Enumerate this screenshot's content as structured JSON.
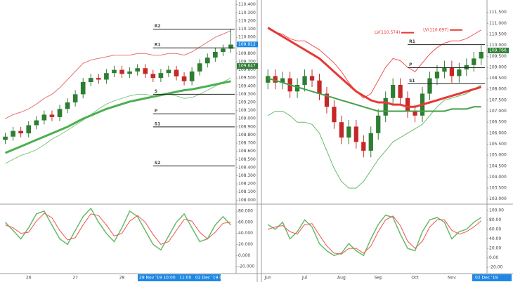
{
  "chart_data": [
    {
      "type": "candlestick",
      "categories": [
        null,
        null,
        null,
        "26",
        null,
        null,
        null,
        null,
        null,
        "27",
        null,
        null,
        null,
        null,
        null,
        "28",
        null,
        null,
        null,
        null,
        null,
        "29",
        null,
        null,
        null,
        null,
        null,
        null,
        null,
        null
      ],
      "open": [
        108.74,
        108.78,
        108.85,
        108.82,
        108.92,
        108.98,
        109.05,
        109.02,
        109.12,
        109.2,
        109.3,
        109.45,
        109.5,
        109.48,
        109.56,
        109.6,
        109.55,
        109.58,
        109.62,
        109.55,
        109.5,
        109.56,
        109.6,
        109.52,
        109.46,
        109.58,
        109.68,
        109.75,
        109.82,
        109.86
      ],
      "high": [
        108.83,
        108.9,
        108.9,
        108.97,
        109.03,
        109.1,
        109.1,
        109.17,
        109.25,
        109.35,
        109.5,
        109.55,
        109.55,
        109.61,
        109.65,
        109.65,
        109.63,
        109.67,
        109.67,
        109.6,
        109.61,
        109.65,
        109.65,
        109.57,
        109.63,
        109.73,
        109.8,
        109.87,
        109.91,
        110.1
      ],
      "low": [
        108.69,
        108.73,
        108.77,
        108.77,
        108.87,
        108.93,
        108.97,
        108.97,
        109.07,
        109.15,
        109.25,
        109.4,
        109.43,
        109.43,
        109.51,
        109.5,
        109.5,
        109.53,
        109.5,
        109.45,
        109.45,
        109.51,
        109.47,
        109.41,
        109.41,
        109.53,
        109.63,
        109.7,
        109.77,
        109.81
      ],
      "close": [
        108.78,
        108.85,
        108.82,
        108.92,
        108.98,
        109.05,
        109.02,
        109.12,
        109.2,
        109.3,
        109.45,
        109.5,
        109.48,
        109.56,
        109.6,
        109.55,
        109.58,
        109.62,
        109.55,
        109.5,
        109.56,
        109.6,
        109.52,
        109.46,
        109.58,
        109.68,
        109.75,
        109.82,
        109.86,
        109.91
      ],
      "up_color": "#2e7d32",
      "down_color": "#c62828",
      "series": [
        {
          "color": "#e57373",
          "width": 1,
          "values": [
            109.0,
            109.05,
            109.08,
            109.12,
            109.18,
            109.25,
            109.3,
            109.38,
            109.48,
            109.58,
            109.68,
            109.72,
            109.74,
            109.76,
            109.78,
            109.78,
            109.78,
            109.8,
            109.8,
            109.78,
            109.78,
            109.8,
            109.8,
            109.78,
            109.82,
            109.88,
            109.94,
            110.0,
            110.04,
            110.08
          ]
        },
        {
          "color": "#81c784",
          "width": 1,
          "values": [
            108.45,
            108.5,
            108.55,
            108.58,
            108.62,
            108.68,
            108.75,
            108.8,
            108.86,
            108.92,
            108.98,
            109.05,
            109.12,
            109.18,
            109.22,
            109.25,
            109.28,
            109.3,
            109.3,
            109.28,
            109.28,
            109.3,
            109.28,
            109.25,
            109.26,
            109.3,
            109.35,
            109.4,
            109.45,
            109.5
          ]
        },
        {
          "color": "#4caf50",
          "width": 3,
          "values": [
            108.58,
            108.62,
            108.66,
            108.7,
            108.74,
            108.78,
            108.82,
            108.86,
            108.9,
            108.95,
            109.0,
            109.04,
            109.08,
            109.12,
            109.15,
            109.18,
            109.21,
            109.23,
            109.25,
            109.27,
            109.29,
            109.31,
            109.33,
            109.35,
            109.36,
            109.38,
            109.4,
            109.42,
            109.44,
            109.46
          ]
        }
      ],
      "levels": [
        {
          "label": "R2",
          "value": 110.1
        },
        {
          "label": "R1",
          "value": 109.87
        },
        {
          "label": "S",
          "value": 109.3
        },
        {
          "label": "P",
          "value": 109.06
        },
        {
          "label": "S1",
          "value": 108.9
        },
        {
          "label": "S2",
          "value": 108.42
        }
      ],
      "price_labels": [
        {
          "value": 109.912,
          "label": "109.912",
          "color": "#1e88e5"
        },
        {
          "value": 109.647,
          "label": "109.647",
          "color": "#2e7d32"
        }
      ],
      "ylim": [
        107.96,
        110.44
      ],
      "yticks": [
        {
          "value": 110.4,
          "label": "110.400"
        },
        {
          "value": 110.3,
          "label": "110.300"
        },
        {
          "value": 110.2,
          "label": "110.200"
        },
        {
          "value": 110.1,
          "label": "110.100"
        },
        {
          "value": 110.0,
          "label": "110.000"
        },
        {
          "value": 109.9,
          "label": "109.900"
        },
        {
          "value": 109.8,
          "label": "109.800"
        },
        {
          "value": 109.7,
          "label": "109.700"
        },
        {
          "value": 109.6,
          "label": "109.600"
        },
        {
          "value": 109.5,
          "label": "109.500"
        },
        {
          "value": 109.4,
          "label": "109.400"
        },
        {
          "value": 109.3,
          "label": "109.300"
        },
        {
          "value": 109.2,
          "label": "109.200"
        },
        {
          "value": 109.1,
          "label": "109.100"
        },
        {
          "value": 109.0,
          "label": "109.000"
        },
        {
          "value": 108.9,
          "label": "108.900"
        },
        {
          "value": 108.8,
          "label": "108.800"
        },
        {
          "value": 108.7,
          "label": "108.700"
        },
        {
          "value": 108.6,
          "label": "108.600"
        },
        {
          "value": 108.5,
          "label": "108.500"
        },
        {
          "value": 108.4,
          "label": "108.400"
        },
        {
          "value": 108.3,
          "label": "108.300"
        },
        {
          "value": 108.2,
          "label": "108.200"
        },
        {
          "value": 108.1,
          "label": "108.100"
        },
        {
          "value": 108.0,
          "label": "108.000"
        }
      ]
    },
    {
      "type": "line",
      "categories": [
        null,
        null,
        null,
        null,
        null,
        null,
        null,
        null,
        null,
        null,
        null,
        null,
        null,
        null,
        null,
        null,
        null,
        null,
        null,
        null,
        null,
        null,
        null,
        null,
        null,
        null,
        null,
        null,
        null,
        null
      ],
      "series": [
        {
          "color": "#66bb6a",
          "width": 1.5,
          "values": [
            60,
            45,
            30,
            50,
            75,
            80,
            55,
            30,
            20,
            45,
            70,
            85,
            60,
            40,
            25,
            50,
            80,
            70,
            45,
            20,
            10,
            35,
            60,
            75,
            50,
            25,
            30,
            55,
            70,
            55
          ]
        },
        {
          "color": "#ef5350",
          "width": 1,
          "values": [
            55,
            50,
            40,
            42,
            62,
            76,
            68,
            45,
            28,
            32,
            55,
            75,
            72,
            55,
            35,
            40,
            62,
            72,
            60,
            38,
            20,
            25,
            45,
            65,
            62,
            42,
            30,
            42,
            58,
            60
          ]
        }
      ],
      "x_highlight_labels": [
        "29 Nov '19 10:00",
        "11:00",
        "02 Dec '19 05:00"
      ],
      "ylim": [
        -30,
        90
      ],
      "yticks": [
        {
          "value": 80,
          "label": "80.000"
        },
        {
          "value": 60,
          "label": "60.000"
        },
        {
          "value": 40,
          "label": "40.000"
        },
        {
          "value": 20,
          "label": "20.000"
        },
        {
          "value": 0,
          "label": "0.000"
        },
        {
          "value": -20,
          "label": "-20.000"
        }
      ]
    },
    {
      "type": "candlestick",
      "categories": [
        "Jun",
        null,
        null,
        null,
        null,
        "Jul",
        null,
        null,
        null,
        null,
        "Aug",
        null,
        null,
        null,
        null,
        "Sep",
        null,
        null,
        null,
        null,
        "Oct",
        null,
        null,
        null,
        null,
        "Nov",
        null,
        null,
        null,
        null
      ],
      "open": [
        108.3,
        108.6,
        108.3,
        108.5,
        107.9,
        108.2,
        108.6,
        108.4,
        107.8,
        107.2,
        106.5,
        105.8,
        106.3,
        105.6,
        105.2,
        106.0,
        106.8,
        107.6,
        108.2,
        107.6,
        107.0,
        106.8,
        107.8,
        108.5,
        108.8,
        109.0,
        108.6,
        108.9,
        109.1,
        109.4
      ],
      "high": [
        108.9,
        108.9,
        108.8,
        108.8,
        108.5,
        108.9,
        108.9,
        108.7,
        108.1,
        107.5,
        106.8,
        106.6,
        106.6,
        105.9,
        106.3,
        107.1,
        107.9,
        108.5,
        108.5,
        107.9,
        107.3,
        108.1,
        108.8,
        109.1,
        109.3,
        109.3,
        109.2,
        109.4,
        109.7,
        110.0
      ],
      "low": [
        108.0,
        108.0,
        108.0,
        107.6,
        107.6,
        107.9,
        108.1,
        107.5,
        106.9,
        106.2,
        105.5,
        105.5,
        105.3,
        104.9,
        104.9,
        105.7,
        106.5,
        107.3,
        107.3,
        106.7,
        106.5,
        106.5,
        107.5,
        108.2,
        108.5,
        108.3,
        108.3,
        108.6,
        108.8,
        109.1
      ],
      "close": [
        108.6,
        108.3,
        108.5,
        107.9,
        108.2,
        108.6,
        108.4,
        107.8,
        107.2,
        106.5,
        105.8,
        106.3,
        105.6,
        105.2,
        106.0,
        106.8,
        107.6,
        108.2,
        107.6,
        107.0,
        106.8,
        107.8,
        108.5,
        108.8,
        109.0,
        108.6,
        108.9,
        109.1,
        109.4,
        109.7
      ],
      "up_color": "#2e7d32",
      "down_color": "#c62828",
      "series": [
        {
          "color": "#ef5350",
          "width": 1,
          "values": [
            110.8,
            110.6,
            110.5,
            110.3,
            110.2,
            110.2,
            110.0,
            109.8,
            109.5,
            109.2,
            108.8,
            108.3,
            107.9,
            107.6,
            107.8,
            108.4,
            109.0,
            109.4,
            109.3,
            109.0,
            108.8,
            109.2,
            109.6,
            109.9,
            110.1,
            110.2,
            110.2,
            110.3,
            110.5,
            110.7
          ]
        },
        {
          "color": "#66bb6a",
          "width": 1,
          "values": [
            106.8,
            107.0,
            107.0,
            106.8,
            106.5,
            106.5,
            106.4,
            106.0,
            105.2,
            104.4,
            103.8,
            103.5,
            103.5,
            103.8,
            104.3,
            104.8,
            105.2,
            105.6,
            105.8,
            106.0,
            106.2,
            106.4,
            106.8,
            107.2,
            107.5,
            107.6,
            107.7,
            107.8,
            108.0,
            108.2
          ]
        },
        {
          "color": "#e53935",
          "width": 3,
          "values": [
            110.8,
            110.6,
            110.4,
            110.2,
            110.0,
            109.8,
            109.6,
            109.4,
            109.1,
            108.8,
            108.5,
            108.2,
            107.9,
            107.7,
            107.5,
            107.4,
            107.4,
            107.3,
            107.3,
            107.2,
            107.2,
            107.3,
            107.4,
            107.5,
            107.6,
            107.7,
            107.8,
            107.9,
            108.0,
            108.1
          ]
        },
        {
          "color": "#43a047",
          "width": 2,
          "values": [
            108.5,
            108.4,
            108.3,
            108.2,
            108.1,
            108.0,
            107.9,
            107.8,
            107.7,
            107.6,
            107.5,
            107.4,
            107.3,
            107.2,
            107.1,
            107.0,
            107.0,
            107.0,
            107.0,
            107.0,
            107.0,
            107.0,
            107.0,
            107.0,
            107.0,
            107.1,
            107.1,
            107.1,
            107.2,
            107.2
          ]
        }
      ],
      "levels": [
        {
          "label": "R1",
          "value": 110.03
        },
        {
          "label": "P",
          "value": 108.98
        },
        {
          "label": "S1",
          "value": 108.25
        }
      ],
      "annotations": [
        {
          "value": 110.574,
          "label": "LV(110.574)"
        },
        {
          "value": 110.697,
          "label": "LV(110.697)"
        }
      ],
      "price_labels": [
        {
          "value": 109.766,
          "label": "109.766",
          "color": "#2e7d32"
        }
      ],
      "ylim": [
        102.8,
        112.0
      ],
      "yticks": [
        {
          "value": 111.5,
          "label": "111.500"
        },
        {
          "value": 111.0,
          "label": "111.000"
        },
        {
          "value": 110.5,
          "label": "110.500"
        },
        {
          "value": 110.0,
          "label": "110.000"
        },
        {
          "value": 109.5,
          "label": "109.500"
        },
        {
          "value": 109.0,
          "label": "109.000"
        },
        {
          "value": 108.5,
          "label": "108.500"
        },
        {
          "value": 108.0,
          "label": "108.000"
        },
        {
          "value": 107.5,
          "label": "107.500"
        },
        {
          "value": 107.0,
          "label": "107.000"
        },
        {
          "value": 106.5,
          "label": "106.500"
        },
        {
          "value": 106.0,
          "label": "106.000"
        },
        {
          "value": 105.5,
          "label": "105.500"
        },
        {
          "value": 105.0,
          "label": "105.000"
        },
        {
          "value": 104.5,
          "label": "104.500"
        },
        {
          "value": 104.0,
          "label": "104.000"
        },
        {
          "value": 103.5,
          "label": "103.500"
        },
        {
          "value": 103.0,
          "label": "103.000"
        }
      ]
    },
    {
      "type": "line",
      "categories": [
        null,
        null,
        null,
        null,
        null,
        null,
        null,
        null,
        null,
        null,
        null,
        null,
        null,
        null,
        null,
        null,
        null,
        null,
        null,
        null,
        null,
        null,
        null,
        null,
        null,
        null,
        null,
        null,
        null,
        null
      ],
      "series": [
        {
          "color": "#66bb6a",
          "width": 1.5,
          "values": [
            70,
            60,
            75,
            40,
            55,
            80,
            65,
            30,
            15,
            5,
            10,
            30,
            15,
            5,
            40,
            70,
            90,
            85,
            50,
            20,
            15,
            55,
            80,
            85,
            75,
            40,
            55,
            60,
            75,
            85
          ]
        },
        {
          "color": "#ef5350",
          "width": 1,
          "values": [
            60,
            65,
            68,
            55,
            50,
            70,
            72,
            48,
            25,
            10,
            8,
            20,
            20,
            10,
            25,
            55,
            80,
            88,
            68,
            35,
            20,
            35,
            65,
            80,
            80,
            58,
            50,
            55,
            65,
            78
          ]
        }
      ],
      "x_highlight_labels": [
        "02 Dec '19"
      ],
      "ylim": [
        -30,
        110
      ],
      "yticks": [
        {
          "value": 100,
          "label": "100.00"
        },
        {
          "value": 80,
          "label": "80.00"
        },
        {
          "value": 60,
          "label": "60.00"
        },
        {
          "value": 40,
          "label": "40.00"
        },
        {
          "value": 20,
          "label": "20.00"
        },
        {
          "value": 0,
          "label": "0.00"
        },
        {
          "value": -20,
          "label": "-20.00"
        }
      ]
    }
  ]
}
